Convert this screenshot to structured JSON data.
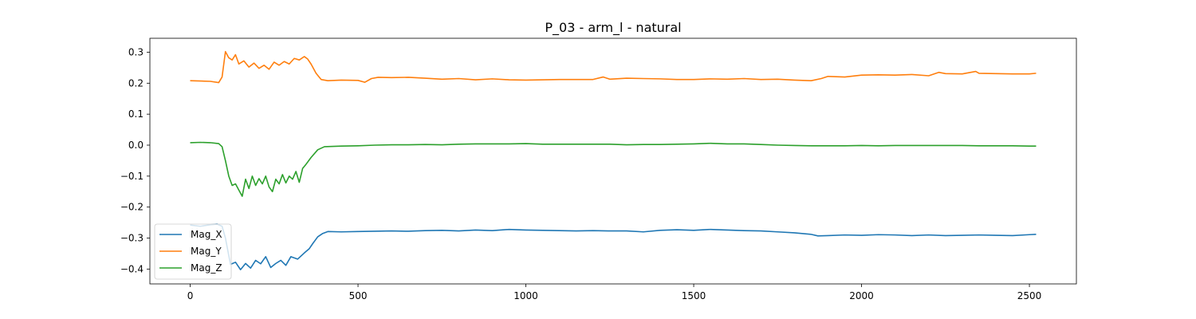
{
  "chart_data": {
    "type": "line",
    "title": "P_03 - arm_l - natural",
    "xlabel": "",
    "ylabel": "",
    "xlim": [
      -120,
      2640
    ],
    "ylim": [
      -0.448,
      0.345
    ],
    "x_ticks": [
      0,
      500,
      1000,
      1500,
      2000,
      2500
    ],
    "x_tick_labels": [
      "0",
      "500",
      "1000",
      "1500",
      "2000",
      "2500"
    ],
    "y_ticks": [
      -0.4,
      -0.3,
      -0.2,
      -0.1,
      0.0,
      0.1,
      0.2,
      0.3
    ],
    "y_tick_labels": [
      "−0.4",
      "−0.3",
      "−0.2",
      "−0.1",
      "0.0",
      "0.1",
      "0.2",
      "0.3"
    ],
    "grid": false,
    "legend_position": "lower-left",
    "series": [
      {
        "name": "Mag_X",
        "color": "#1f77b4",
        "points": [
          [
            0,
            -0.258
          ],
          [
            30,
            -0.262
          ],
          [
            60,
            -0.257
          ],
          [
            80,
            -0.255
          ],
          [
            95,
            -0.262
          ],
          [
            105,
            -0.3
          ],
          [
            120,
            -0.385
          ],
          [
            135,
            -0.378
          ],
          [
            150,
            -0.402
          ],
          [
            165,
            -0.382
          ],
          [
            180,
            -0.397
          ],
          [
            195,
            -0.372
          ],
          [
            210,
            -0.383
          ],
          [
            225,
            -0.36
          ],
          [
            240,
            -0.395
          ],
          [
            255,
            -0.382
          ],
          [
            270,
            -0.372
          ],
          [
            285,
            -0.388
          ],
          [
            300,
            -0.36
          ],
          [
            320,
            -0.368
          ],
          [
            340,
            -0.348
          ],
          [
            355,
            -0.334
          ],
          [
            365,
            -0.318
          ],
          [
            380,
            -0.296
          ],
          [
            395,
            -0.285
          ],
          [
            410,
            -0.279
          ],
          [
            450,
            -0.28
          ],
          [
            500,
            -0.279
          ],
          [
            550,
            -0.278
          ],
          [
            600,
            -0.277
          ],
          [
            650,
            -0.278
          ],
          [
            700,
            -0.276
          ],
          [
            750,
            -0.275
          ],
          [
            800,
            -0.277
          ],
          [
            850,
            -0.274
          ],
          [
            900,
            -0.276
          ],
          [
            950,
            -0.272
          ],
          [
            1000,
            -0.274
          ],
          [
            1050,
            -0.275
          ],
          [
            1100,
            -0.276
          ],
          [
            1150,
            -0.277
          ],
          [
            1200,
            -0.276
          ],
          [
            1250,
            -0.277
          ],
          [
            1300,
            -0.277
          ],
          [
            1350,
            -0.28
          ],
          [
            1400,
            -0.275
          ],
          [
            1450,
            -0.273
          ],
          [
            1500,
            -0.275
          ],
          [
            1550,
            -0.272
          ],
          [
            1600,
            -0.274
          ],
          [
            1650,
            -0.276
          ],
          [
            1700,
            -0.277
          ],
          [
            1750,
            -0.28
          ],
          [
            1800,
            -0.283
          ],
          [
            1850,
            -0.288
          ],
          [
            1870,
            -0.293
          ],
          [
            1900,
            -0.292
          ],
          [
            1950,
            -0.29
          ],
          [
            2000,
            -0.291
          ],
          [
            2050,
            -0.289
          ],
          [
            2100,
            -0.29
          ],
          [
            2150,
            -0.292
          ],
          [
            2200,
            -0.29
          ],
          [
            2250,
            -0.292
          ],
          [
            2300,
            -0.291
          ],
          [
            2350,
            -0.29
          ],
          [
            2400,
            -0.291
          ],
          [
            2450,
            -0.292
          ],
          [
            2500,
            -0.289
          ],
          [
            2520,
            -0.288
          ]
        ]
      },
      {
        "name": "Mag_Y",
        "color": "#ff7f0e",
        "points": [
          [
            0,
            0.208
          ],
          [
            30,
            0.207
          ],
          [
            60,
            0.206
          ],
          [
            85,
            0.202
          ],
          [
            95,
            0.22
          ],
          [
            105,
            0.302
          ],
          [
            115,
            0.282
          ],
          [
            125,
            0.275
          ],
          [
            135,
            0.292
          ],
          [
            145,
            0.262
          ],
          [
            160,
            0.272
          ],
          [
            175,
            0.252
          ],
          [
            190,
            0.265
          ],
          [
            205,
            0.248
          ],
          [
            220,
            0.258
          ],
          [
            235,
            0.245
          ],
          [
            250,
            0.268
          ],
          [
            265,
            0.258
          ],
          [
            280,
            0.27
          ],
          [
            295,
            0.262
          ],
          [
            310,
            0.28
          ],
          [
            325,
            0.275
          ],
          [
            340,
            0.286
          ],
          [
            350,
            0.278
          ],
          [
            360,
            0.262
          ],
          [
            375,
            0.232
          ],
          [
            390,
            0.212
          ],
          [
            410,
            0.208
          ],
          [
            450,
            0.21
          ],
          [
            500,
            0.209
          ],
          [
            520,
            0.203
          ],
          [
            540,
            0.215
          ],
          [
            560,
            0.219
          ],
          [
            600,
            0.218
          ],
          [
            650,
            0.219
          ],
          [
            700,
            0.216
          ],
          [
            750,
            0.213
          ],
          [
            800,
            0.215
          ],
          [
            850,
            0.211
          ],
          [
            900,
            0.214
          ],
          [
            950,
            0.211
          ],
          [
            1000,
            0.21
          ],
          [
            1050,
            0.211
          ],
          [
            1100,
            0.212
          ],
          [
            1150,
            0.212
          ],
          [
            1200,
            0.212
          ],
          [
            1230,
            0.22
          ],
          [
            1250,
            0.213
          ],
          [
            1300,
            0.216
          ],
          [
            1350,
            0.215
          ],
          [
            1400,
            0.214
          ],
          [
            1450,
            0.212
          ],
          [
            1500,
            0.212
          ],
          [
            1550,
            0.214
          ],
          [
            1600,
            0.213
          ],
          [
            1650,
            0.215
          ],
          [
            1700,
            0.212
          ],
          [
            1750,
            0.213
          ],
          [
            1800,
            0.21
          ],
          [
            1850,
            0.208
          ],
          [
            1880,
            0.215
          ],
          [
            1900,
            0.222
          ],
          [
            1950,
            0.22
          ],
          [
            2000,
            0.226
          ],
          [
            2050,
            0.227
          ],
          [
            2100,
            0.226
          ],
          [
            2150,
            0.228
          ],
          [
            2200,
            0.224
          ],
          [
            2230,
            0.235
          ],
          [
            2250,
            0.231
          ],
          [
            2300,
            0.23
          ],
          [
            2340,
            0.238
          ],
          [
            2350,
            0.232
          ],
          [
            2400,
            0.231
          ],
          [
            2450,
            0.23
          ],
          [
            2500,
            0.23
          ],
          [
            2520,
            0.232
          ]
        ]
      },
      {
        "name": "Mag_Z",
        "color": "#2ca02c",
        "points": [
          [
            0,
            0.008
          ],
          [
            30,
            0.009
          ],
          [
            60,
            0.008
          ],
          [
            85,
            0.005
          ],
          [
            95,
            -0.005
          ],
          [
            105,
            -0.05
          ],
          [
            115,
            -0.1
          ],
          [
            125,
            -0.13
          ],
          [
            135,
            -0.125
          ],
          [
            145,
            -0.145
          ],
          [
            155,
            -0.165
          ],
          [
            165,
            -0.11
          ],
          [
            175,
            -0.14
          ],
          [
            185,
            -0.1
          ],
          [
            195,
            -0.13
          ],
          [
            205,
            -0.108
          ],
          [
            215,
            -0.125
          ],
          [
            225,
            -0.1
          ],
          [
            235,
            -0.135
          ],
          [
            245,
            -0.15
          ],
          [
            255,
            -0.11
          ],
          [
            265,
            -0.125
          ],
          [
            275,
            -0.095
          ],
          [
            285,
            -0.122
          ],
          [
            295,
            -0.1
          ],
          [
            305,
            -0.11
          ],
          [
            315,
            -0.085
          ],
          [
            325,
            -0.12
          ],
          [
            335,
            -0.075
          ],
          [
            345,
            -0.062
          ],
          [
            360,
            -0.04
          ],
          [
            380,
            -0.015
          ],
          [
            400,
            -0.005
          ],
          [
            450,
            -0.003
          ],
          [
            500,
            -0.002
          ],
          [
            550,
            0.0
          ],
          [
            600,
            0.001
          ],
          [
            650,
            0.001
          ],
          [
            700,
            0.002
          ],
          [
            750,
            0.001
          ],
          [
            800,
            0.003
          ],
          [
            850,
            0.004
          ],
          [
            900,
            0.004
          ],
          [
            950,
            0.004
          ],
          [
            1000,
            0.005
          ],
          [
            1050,
            0.003
          ],
          [
            1100,
            0.003
          ],
          [
            1150,
            0.003
          ],
          [
            1200,
            0.003
          ],
          [
            1250,
            0.003
          ],
          [
            1300,
            0.001
          ],
          [
            1350,
            0.002
          ],
          [
            1400,
            0.002
          ],
          [
            1450,
            0.003
          ],
          [
            1500,
            0.004
          ],
          [
            1550,
            0.006
          ],
          [
            1600,
            0.004
          ],
          [
            1650,
            0.004
          ],
          [
            1700,
            0.002
          ],
          [
            1750,
            0.0
          ],
          [
            1800,
            -0.001
          ],
          [
            1850,
            -0.002
          ],
          [
            1900,
            -0.002
          ],
          [
            1950,
            -0.002
          ],
          [
            2000,
            -0.001
          ],
          [
            2050,
            -0.002
          ],
          [
            2100,
            -0.001
          ],
          [
            2150,
            -0.001
          ],
          [
            2200,
            -0.001
          ],
          [
            2250,
            -0.001
          ],
          [
            2300,
            -0.001
          ],
          [
            2350,
            -0.002
          ],
          [
            2400,
            -0.002
          ],
          [
            2450,
            -0.002
          ],
          [
            2500,
            -0.003
          ],
          [
            2520,
            -0.003
          ]
        ]
      }
    ]
  }
}
